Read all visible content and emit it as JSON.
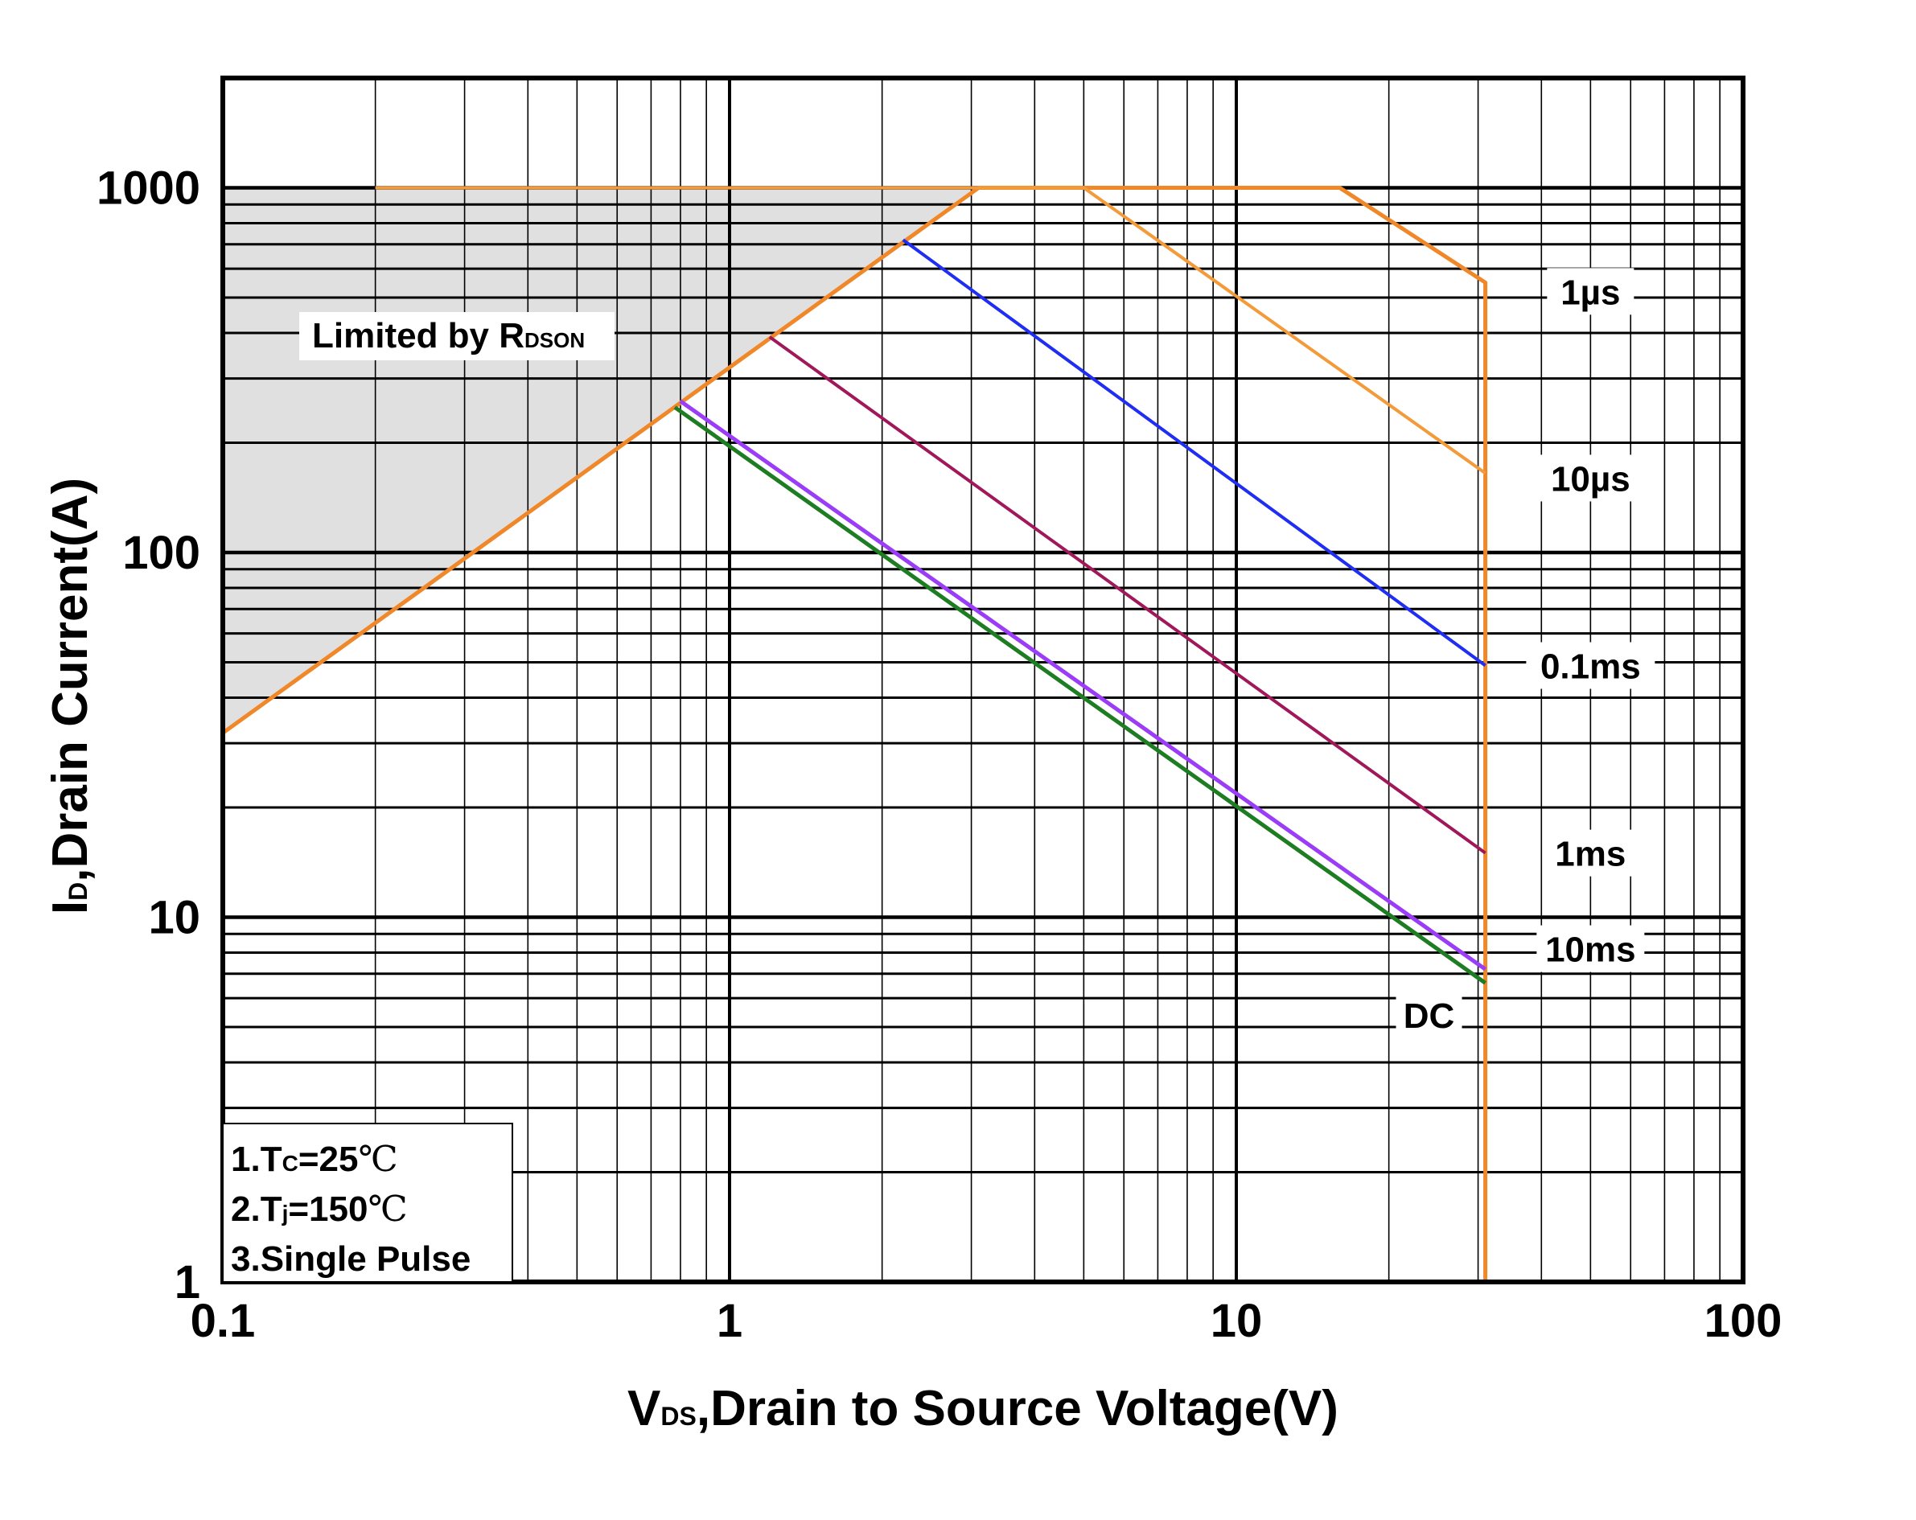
{
  "chart_data": {
    "type": "line",
    "title": "",
    "xscale": "log",
    "yscale": "log",
    "xlim": [
      0.1,
      100
    ],
    "ylim": [
      1,
      2000
    ],
    "grid": true,
    "xlabel": {
      "main": "V",
      "sub": "DS",
      "rest": ",Drain to Source Voltage(V)"
    },
    "ylabel": {
      "main": "I",
      "sub": "D",
      "rest": ",Drain Current(A)"
    },
    "x_ticks": [
      {
        "value": 0.1,
        "label": "0.1"
      },
      {
        "value": 1,
        "label": "1"
      },
      {
        "value": 10,
        "label": "10"
      },
      {
        "value": 100,
        "label": "100"
      }
    ],
    "y_ticks": [
      {
        "value": 1,
        "label": "1"
      },
      {
        "value": 10,
        "label": "10"
      },
      {
        "value": 100,
        "label": "100"
      },
      {
        "value": 1000,
        "label": "1000"
      }
    ],
    "limit_region": {
      "label_main": "Limited by R",
      "label_sub": "DSON",
      "fill": "#e0e0e0",
      "boundary": [
        [
          0.1,
          32
        ],
        [
          3.1,
          1000
        ]
      ]
    },
    "series": [
      {
        "name": "1µs",
        "color": "#f0882a",
        "width": 5,
        "points": [
          [
            0.1,
            32
          ],
          [
            3.1,
            1000
          ],
          [
            16,
            1000
          ],
          [
            31,
            550
          ],
          [
            31,
            1
          ]
        ]
      },
      {
        "name": "10µs",
        "color": "#f39a3a",
        "width": 4,
        "points": [
          [
            0.2,
            1000
          ],
          [
            5,
            1000
          ],
          [
            31,
            165
          ]
        ]
      },
      {
        "name": "0.1ms",
        "color": "#1f2ef2",
        "width": 4,
        "points": [
          [
            2.2,
            720
          ],
          [
            31,
            49
          ]
        ]
      },
      {
        "name": "1ms",
        "color": "#a0185a",
        "width": 4,
        "points": [
          [
            1.2,
            390
          ],
          [
            31,
            15
          ]
        ]
      },
      {
        "name": "10ms",
        "color": "#9b3cf6",
        "width": 5,
        "points": [
          [
            0.8,
            260
          ],
          [
            31,
            7.2
          ]
        ]
      },
      {
        "name": "DC",
        "color": "#1e7d22",
        "width": 5,
        "points": [
          [
            0.78,
            250
          ],
          [
            31,
            6.6
          ]
        ]
      }
    ],
    "series_labels": [
      {
        "text": "1µs",
        "at": [
          50,
          520
        ]
      },
      {
        "text": "10µs",
        "at": [
          50,
          160
        ]
      },
      {
        "text": "0.1ms",
        "at": [
          50,
          49
        ]
      },
      {
        "text": "1ms",
        "at": [
          50,
          15
        ]
      },
      {
        "text": "10ms",
        "at": [
          50,
          8.2
        ]
      },
      {
        "text": "DC",
        "at": [
          24,
          5.4
        ]
      }
    ],
    "notes": [
      {
        "prefix": "1.T",
        "sub": "C",
        "value": "=25",
        "unit": "℃"
      },
      {
        "prefix": "2.T",
        "sub": "j",
        "value": "=150",
        "unit": "℃"
      },
      {
        "prefix": "3.Single Pulse",
        "sub": "",
        "value": "",
        "unit": ""
      }
    ]
  }
}
